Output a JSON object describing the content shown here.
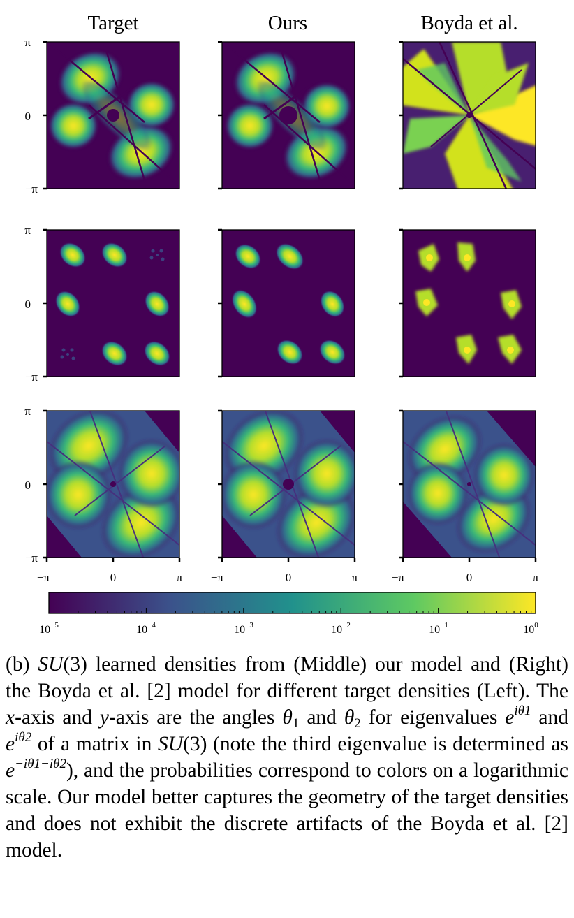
{
  "figure": {
    "column_titles": [
      "Target",
      "Ours",
      "Boyda et al."
    ],
    "y_ticks": [
      "π",
      "0",
      "−π"
    ],
    "x_ticks": [
      "−π",
      "0",
      "π"
    ],
    "colormap": "viridis",
    "colormap_stops": [
      "#440154",
      "#3b528b",
      "#21918c",
      "#5ec962",
      "#fde725"
    ],
    "rows": [
      {
        "row": 1,
        "pattern": "four-lobe density with dark diagonal seams"
      },
      {
        "row": 2,
        "pattern": "six isolated blobs"
      },
      {
        "row": 3,
        "pattern": "four broad lobes with dark diagonal seams"
      }
    ],
    "colorbar": {
      "scale": "log",
      "min": 1e-05,
      "max": 1,
      "ticks": [
        {
          "base": "10",
          "exp": "−5"
        },
        {
          "base": "10",
          "exp": "−4"
        },
        {
          "base": "10",
          "exp": "−3"
        },
        {
          "base": "10",
          "exp": "−2"
        },
        {
          "base": "10",
          "exp": "−1"
        },
        {
          "base": "10",
          "exp": "0"
        }
      ]
    }
  },
  "caption": {
    "p01": "(b) ",
    "m01": "SU",
    "p02": "(3) learned densities from (Middle) our model and (Right) the Boyda et al. [2] model for different target densities (Left). The ",
    "m02": "x",
    "p03": "-axis and ",
    "m03": "y",
    "p04": "-axis are the angles ",
    "m04": "θ",
    "s01": "1",
    "p05": " and ",
    "m05": "θ",
    "s02": "2",
    "p06": " for eigenvalues ",
    "m06": "e",
    "u01": "iθ1",
    "p07": " and ",
    "m07": "e",
    "u02": "iθ2",
    "p08": " of a matrix in ",
    "m08": "SU",
    "p09": "(3) (note the third eigenvalue is determined as ",
    "m09": "e",
    "u03": "−iθ1−iθ2",
    "p10": "), and the probabilities correspond to colors on a logarithmic scale. Our model better captures the geometry of the target densities and does not exhibit the discrete artifacts of the Boyda et al. [2] model."
  }
}
